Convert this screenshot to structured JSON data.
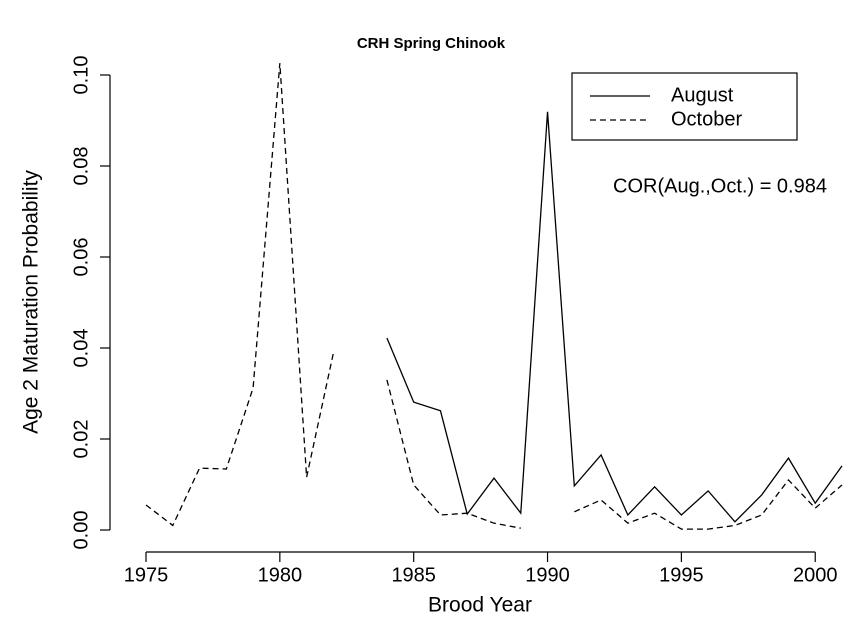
{
  "chart_data": {
    "type": "line",
    "title": "CRH Spring Chinook",
    "x_label": "Brood Year",
    "y_label": "Age 2 Maturation Probability",
    "annotation": "COR(Aug.,Oct.) = 0.984",
    "x": [
      1975,
      1976,
      1977,
      1978,
      1979,
      1980,
      1981,
      1982,
      1983,
      1984,
      1985,
      1986,
      1987,
      1988,
      1989,
      1990,
      1991,
      1992,
      1993,
      1994,
      1995,
      1996,
      1997,
      1998,
      1999,
      2000,
      2001
    ],
    "series": [
      {
        "name": "August",
        "color": "#000000",
        "dash": "solid",
        "values": [
          null,
          null,
          null,
          null,
          null,
          null,
          null,
          null,
          null,
          0.0422,
          0.0281,
          0.0262,
          0.0035,
          0.0114,
          0.0037,
          0.0919,
          0.0097,
          0.0165,
          0.0033,
          0.0095,
          0.0033,
          0.0086,
          0.0018,
          0.0077,
          0.0158,
          0.0059,
          0.0141
        ]
      },
      {
        "name": "October",
        "color": "#000000",
        "dash": "dashed",
        "values": [
          0.0055,
          0.001,
          0.0136,
          0.0134,
          0.0312,
          0.1026,
          0.0116,
          0.0389,
          null,
          0.033,
          0.0099,
          0.0033,
          0.0037,
          0.0015,
          0.0004,
          null,
          0.004,
          0.0066,
          0.0015,
          0.0037,
          0.0002,
          0.0002,
          0.001,
          0.0033,
          0.011,
          0.0048,
          0.0099
        ]
      }
    ],
    "xlim": [
      1975,
      2001
    ],
    "xticks": [
      1975,
      1980,
      1985,
      1990,
      1995,
      2000
    ],
    "ylim": [
      0,
      0.1
    ],
    "yticks": [
      {
        "value": 0,
        "label": "0.00"
      },
      {
        "value": 0.02,
        "label": "0.02"
      },
      {
        "value": 0.04,
        "label": "0.04"
      },
      {
        "value": 0.06,
        "label": "0.06"
      },
      {
        "value": 0.08,
        "label": "0.08"
      },
      {
        "value": 0.1,
        "label": "0.10"
      }
    ],
    "legend": "top-right"
  }
}
